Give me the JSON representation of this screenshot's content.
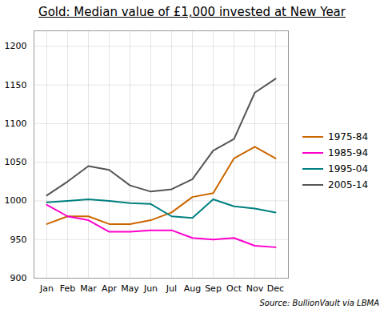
{
  "chart_data": {
    "type": "line",
    "title": "Gold: Median value of £1,000 invested at New Year",
    "annotations": [
      "Source: BullionVault via LBMA"
    ],
    "categories": [
      "Jan",
      "Feb",
      "Mar",
      "Apr",
      "May",
      "Jun",
      "Jul",
      "Aug",
      "Sep",
      "Oct",
      "Nov",
      "Dec"
    ],
    "series": [
      {
        "name": "1975-84",
        "color": "#cc6600",
        "values": [
          970,
          980,
          980,
          970,
          970,
          975,
          985,
          1005,
          1010,
          1055,
          1070,
          1055
        ]
      },
      {
        "name": "1985-94",
        "color": "#ff00cc",
        "values": [
          995,
          980,
          975,
          960,
          960,
          962,
          962,
          952,
          950,
          952,
          942,
          940
        ]
      },
      {
        "name": "1995-04",
        "color": "#008080",
        "values": [
          998,
          1000,
          1002,
          1000,
          997,
          996,
          980,
          978,
          1002,
          993,
          990,
          985
        ]
      },
      {
        "name": "2005-14",
        "color": "#555555",
        "values": [
          1007,
          1025,
          1045,
          1040,
          1020,
          1012,
          1015,
          1028,
          1065,
          1080,
          1140,
          1158
        ]
      }
    ],
    "ylim": [
      900,
      1220
    ],
    "yticks": [
      900,
      950,
      1000,
      1050,
      1100,
      1150,
      1200
    ],
    "grid": true,
    "legend": "right"
  }
}
